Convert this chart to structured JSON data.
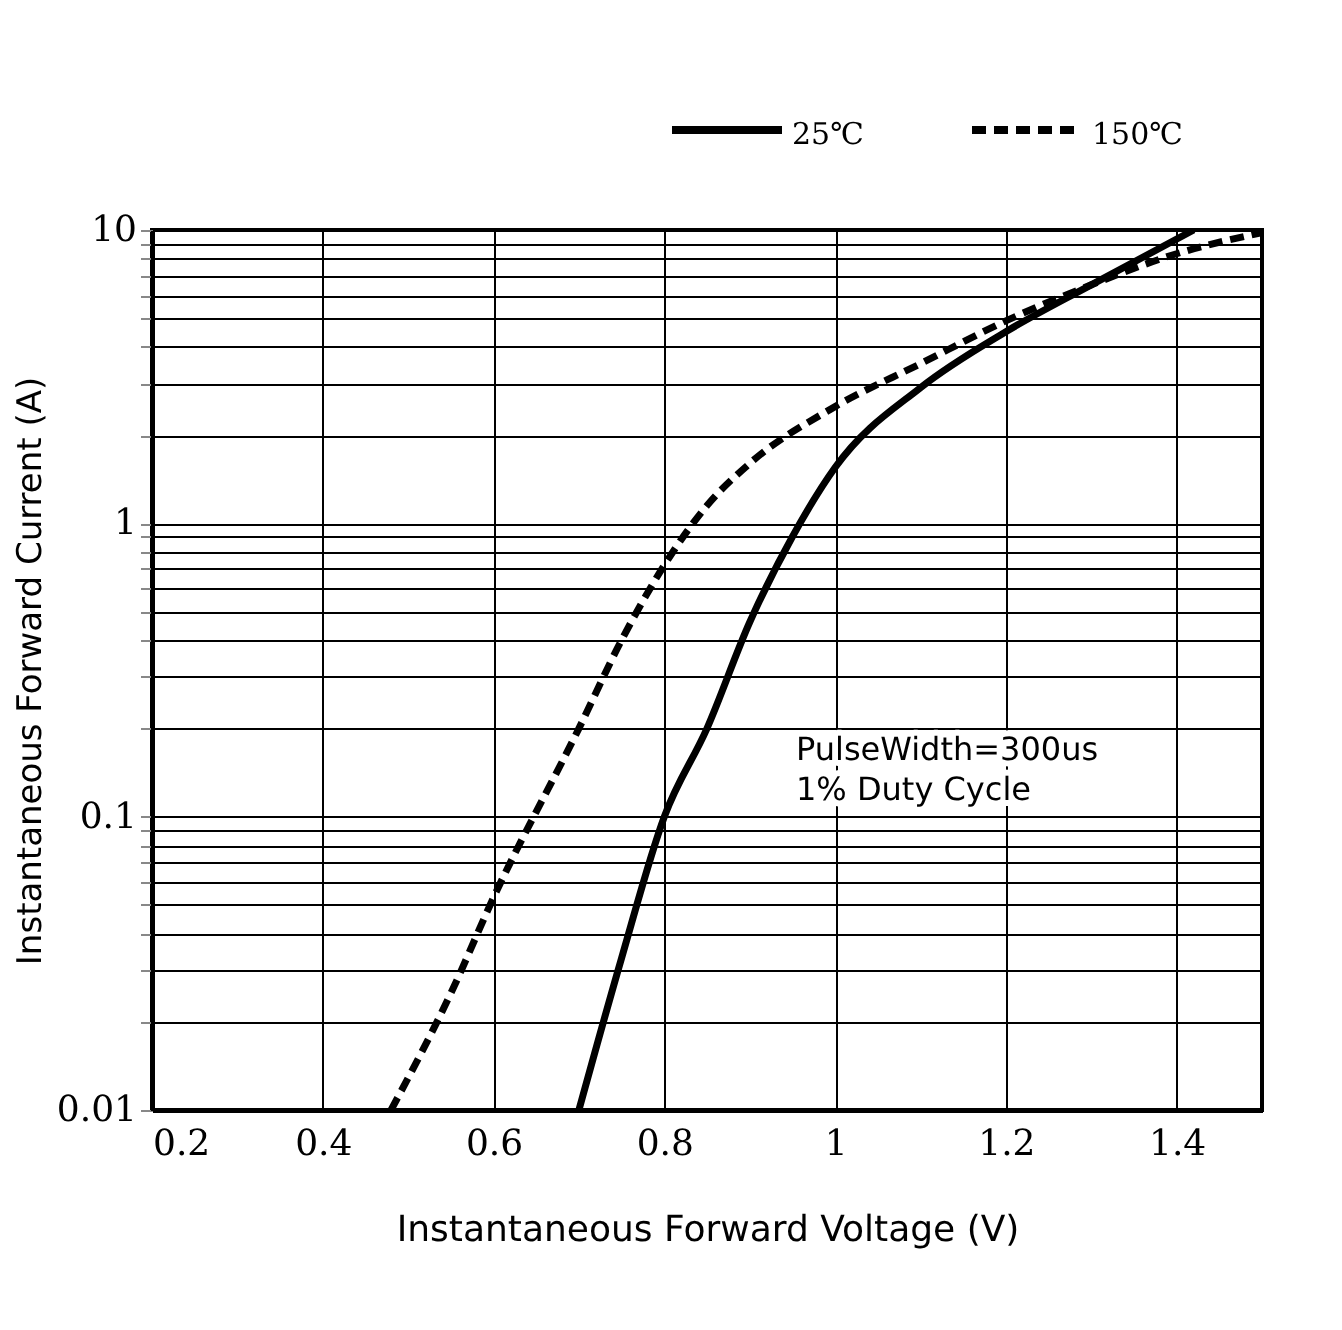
{
  "chart_data": {
    "type": "line",
    "xlabel": "Instantaneous Forward Voltage (V)",
    "ylabel": "Instantaneous Forward Current (A)",
    "xlim": [
      0.2,
      1.5
    ],
    "xticks": [
      0.2,
      0.4,
      0.6,
      0.8,
      1,
      1.2,
      1.4
    ],
    "ylim": [
      0.01,
      10
    ],
    "log": true,
    "grid": true,
    "legend": "top",
    "yticks": [
      0.01,
      {
        "value": 0.02,
        "label": null
      },
      {
        "value": 0.03,
        "label": null
      },
      {
        "value": 0.04,
        "label": null
      },
      {
        "value": 0.05,
        "label": null
      },
      {
        "value": 0.06,
        "label": null
      },
      {
        "value": 0.07,
        "label": null
      },
      {
        "value": 0.08,
        "label": null
      },
      {
        "value": 0.09,
        "label": null
      },
      0.1,
      {
        "value": 0.2,
        "label": null
      },
      {
        "value": 0.3,
        "label": null
      },
      {
        "value": 0.4,
        "label": null
      },
      {
        "value": 0.5,
        "label": null
      },
      {
        "value": 0.6,
        "label": null
      },
      {
        "value": 0.7,
        "label": null
      },
      {
        "value": 0.8,
        "label": null
      },
      {
        "value": 0.9,
        "label": null
      },
      1,
      {
        "value": 2,
        "label": null
      },
      {
        "value": 3,
        "label": null
      },
      {
        "value": 4,
        "label": null
      },
      {
        "value": 5,
        "label": null
      },
      {
        "value": 6,
        "label": null
      },
      {
        "value": 7,
        "label": null
      },
      {
        "value": 8,
        "label": null
      },
      {
        "value": 9,
        "label": null
      },
      10
    ],
    "annotations": [
      "PulseWidth=300us",
      "1% Duty Cycle"
    ],
    "series": [
      {
        "name": "25℃",
        "color": "#000000",
        "line_style": "solid",
        "x": [
          0.7,
          0.75,
          0.8,
          0.85,
          0.9,
          0.95,
          1.0,
          1.1,
          1.2,
          1.3,
          1.42
        ],
        "values": [
          0.01,
          0.033,
          0.1,
          0.2,
          0.46,
          0.9,
          1.55,
          2.9,
          4.5,
          6.5,
          10
        ]
      },
      {
        "name": "150℃",
        "color": "#000000",
        "line_style": "dashed",
        "x": [
          0.48,
          0.55,
          0.6,
          0.7,
          0.75,
          0.8,
          0.85,
          0.9,
          1.0,
          1.1,
          1.2,
          1.3,
          1.4,
          1.5
        ],
        "values": [
          0.01,
          0.025,
          0.053,
          0.2,
          0.4,
          0.72,
          1.15,
          1.6,
          2.5,
          3.5,
          4.9,
          6.5,
          8.3,
          9.8
        ]
      }
    ]
  }
}
